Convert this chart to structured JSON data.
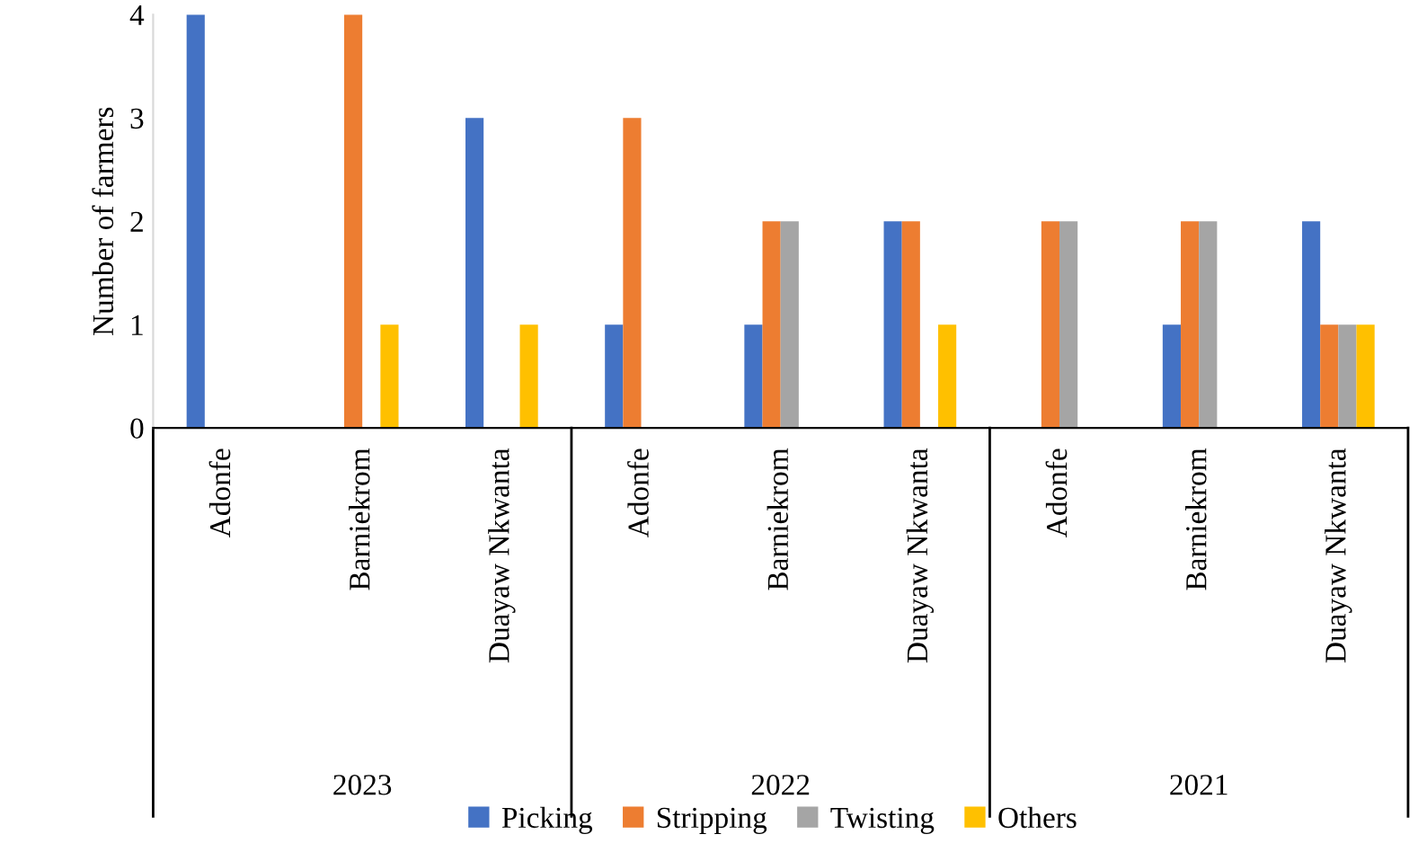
{
  "chart_data": {
    "type": "bar",
    "ylabel": "Number of farmers",
    "categories": [
      "Adonfe",
      "Barniekrom",
      "Duayaw Nkwanta",
      "Adonfe",
      "Barniekrom",
      "Duayaw Nkwanta",
      "Adonfe",
      "Barniekrom",
      "Duayaw Nkwanta"
    ],
    "annotations": [
      "2023",
      "2022",
      "2021"
    ],
    "series": [
      {
        "name": "Picking",
        "color": "#4472c4",
        "values": [
          4,
          0,
          3,
          1,
          1,
          2,
          0,
          1,
          2
        ]
      },
      {
        "name": "Stripping",
        "color": "#ed7d31",
        "values": [
          0,
          4,
          0,
          3,
          2,
          2,
          2,
          2,
          1
        ]
      },
      {
        "name": "Twisting",
        "color": "#a5a5a5",
        "values": [
          0,
          0,
          0,
          0,
          2,
          0,
          2,
          2,
          1
        ]
      },
      {
        "name": "Others",
        "color": "#ffc000",
        "values": [
          0,
          1,
          1,
          0,
          0,
          1,
          0,
          0,
          1
        ]
      }
    ],
    "ylim": [
      0,
      4
    ],
    "yticks": [
      0,
      1,
      2,
      3,
      4
    ],
    "grid": false,
    "legend": "bottom"
  }
}
